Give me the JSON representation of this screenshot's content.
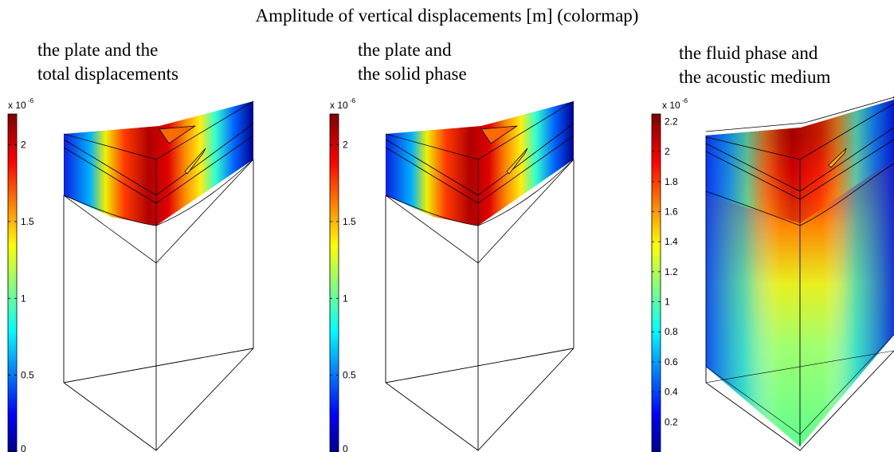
{
  "figure": {
    "title": "Amplitude of vertical displacements [m] (colormap)"
  },
  "panels": [
    {
      "caption_line1": "the plate and the",
      "caption_line2": "total displacements",
      "colorbar_exponent_base": "x 10",
      "colorbar_exponent_power": "-6",
      "colorbar_ticks": [
        "2",
        "1.5",
        "1",
        "0.5",
        "0"
      ],
      "colorbar_range": [
        0,
        2.2
      ]
    },
    {
      "caption_line1": "the plate and",
      "caption_line2": "the solid phase",
      "colorbar_exponent_base": "x 10",
      "colorbar_exponent_power": "-6",
      "colorbar_ticks": [
        "2",
        "1.5",
        "1",
        "0.5",
        "0"
      ],
      "colorbar_range": [
        0,
        2.2
      ]
    },
    {
      "caption_line1": "the fluid phase and",
      "caption_line2": "the acoustic medium",
      "colorbar_exponent_base": "x 10",
      "colorbar_exponent_power": "-6",
      "colorbar_ticks": [
        "2.2",
        "2",
        "1.8",
        "1.6",
        "1.4",
        "1.2",
        "1",
        "0.8",
        "0.6",
        "0.4",
        "0.2"
      ],
      "colorbar_range": [
        0,
        2.25
      ]
    }
  ],
  "colormap": "jet",
  "colors": {
    "jet_dark_blue": "#00008f",
    "jet_blue": "#0000ff",
    "jet_cyan": "#00ffff",
    "jet_yellow": "#ffff00",
    "jet_red": "#ff0000",
    "jet_dark_red": "#800000",
    "outline": "#000000"
  }
}
